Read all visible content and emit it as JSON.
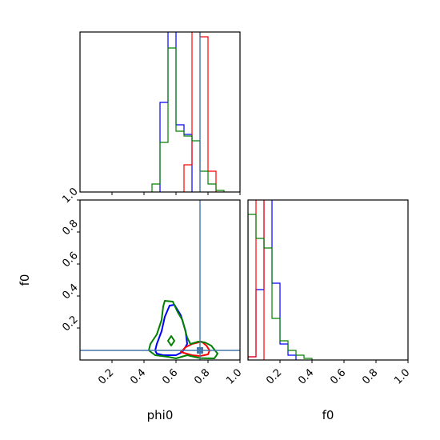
{
  "chart_data": [
    {
      "type": "histogram",
      "panel": "phi0 marginal",
      "xlim": [
        0,
        1
      ],
      "bin_width": 0.05,
      "y_ticks": "none",
      "series": [
        {
          "color": "#0000ff",
          "bins": [
            [
              0.5,
              0.56
            ],
            [
              0.55,
              1.2
            ],
            [
              0.6,
              0.42
            ],
            [
              0.65,
              0.36
            ]
          ]
        },
        {
          "color": "#ff0000",
          "bins": [
            [
              0.65,
              0.17
            ],
            [
              0.7,
              1.1
            ],
            [
              0.75,
              0.97
            ],
            [
              0.8,
              0.13
            ]
          ]
        },
        {
          "color": "#008000",
          "bins": [
            [
              0.45,
              0.05
            ],
            [
              0.5,
              0.31
            ],
            [
              0.55,
              0.9
            ],
            [
              0.6,
              0.38
            ],
            [
              0.65,
              0.35
            ],
            [
              0.7,
              0.32
            ],
            [
              0.75,
              0.13
            ],
            [
              0.8,
              0.05
            ],
            [
              0.85,
              0.01
            ]
          ]
        }
      ],
      "truth_line": {
        "x": 0.75,
        "color": "#4477aa"
      }
    },
    {
      "type": "contour",
      "panel": "phi0 vs f0",
      "xlabel": "phi0",
      "ylabel": "f0",
      "xlim": [
        0,
        1
      ],
      "ylim": [
        0,
        1
      ],
      "x_ticks": [
        "0.2",
        "0.4",
        "0.6",
        "0.8",
        "1.0"
      ],
      "y_ticks": [
        "0.2",
        "0.4",
        "0.6",
        "0.8",
        "1.0"
      ],
      "contours": [
        {
          "color": "#0000ff",
          "points": [
            [
              0.48,
              0.04
            ],
            [
              0.52,
              0.03
            ],
            [
              0.6,
              0.03
            ],
            [
              0.64,
              0.05
            ],
            [
              0.67,
              0.1
            ],
            [
              0.66,
              0.18
            ],
            [
              0.63,
              0.28
            ],
            [
              0.59,
              0.345
            ],
            [
              0.56,
              0.34
            ],
            [
              0.53,
              0.27
            ],
            [
              0.51,
              0.18
            ],
            [
              0.48,
              0.1
            ],
            [
              0.47,
              0.06
            ]
          ]
        },
        {
          "color": "#ff0000",
          "points": [
            [
              0.63,
              0.05
            ],
            [
              0.66,
              0.08
            ],
            [
              0.7,
              0.1
            ],
            [
              0.76,
              0.115
            ],
            [
              0.79,
              0.09
            ],
            [
              0.81,
              0.06
            ],
            [
              0.8,
              0.035
            ],
            [
              0.75,
              0.025
            ],
            [
              0.7,
              0.03
            ]
          ]
        },
        {
          "color": "#008000",
          "points": [
            [
              0.43,
              0.06
            ],
            [
              0.44,
              0.1
            ],
            [
              0.48,
              0.16
            ],
            [
              0.51,
              0.25
            ],
            [
              0.52,
              0.335
            ],
            [
              0.53,
              0.37
            ],
            [
              0.58,
              0.365
            ],
            [
              0.61,
              0.3
            ],
            [
              0.64,
              0.25
            ],
            [
              0.67,
              0.14
            ],
            [
              0.69,
              0.1
            ],
            [
              0.74,
              0.115
            ],
            [
              0.78,
              0.11
            ],
            [
              0.82,
              0.09
            ],
            [
              0.86,
              0.04
            ],
            [
              0.84,
              0.01
            ],
            [
              0.75,
              0.012
            ],
            [
              0.67,
              0.03
            ],
            [
              0.6,
              0.01
            ],
            [
              0.55,
              0.02
            ],
            [
              0.47,
              0.03
            ]
          ]
        },
        {
          "color": "#008000",
          "points": [
            [
              0.57,
              0.09
            ],
            [
              0.59,
              0.12
            ],
            [
              0.57,
              0.15
            ],
            [
              0.55,
              0.12
            ]
          ]
        }
      ],
      "truth_lines": {
        "x": 0.75,
        "y": 0.06,
        "color": "#4477aa"
      },
      "truth_point": {
        "x": 0.75,
        "y": 0.06
      }
    },
    {
      "type": "histogram",
      "panel": "f0 marginal",
      "xlabel": "f0",
      "xlim": [
        0,
        1
      ],
      "bin_width": 0.05,
      "x_ticks": [
        "0.2",
        "0.4",
        "0.6",
        "0.8",
        "1.0"
      ],
      "y_ticks": "none",
      "series": [
        {
          "color": "#0000ff",
          "bins": [
            [
              0.0,
              0.02
            ],
            [
              0.05,
              0.44
            ],
            [
              0.1,
              1.6
            ],
            [
              0.15,
              0.48
            ],
            [
              0.2,
              0.1
            ],
            [
              0.25,
              0.03
            ]
          ]
        },
        {
          "color": "#ff0000",
          "bins": [
            [
              0.0,
              0.02
            ],
            [
              0.05,
              1.6
            ]
          ]
        },
        {
          "color": "#008000",
          "bins": [
            [
              0.0,
              0.91
            ],
            [
              0.05,
              0.76
            ],
            [
              0.1,
              0.7
            ],
            [
              0.15,
              0.26
            ],
            [
              0.2,
              0.12
            ],
            [
              0.25,
              0.06
            ],
            [
              0.3,
              0.03
            ],
            [
              0.35,
              0.01
            ]
          ]
        }
      ]
    }
  ]
}
